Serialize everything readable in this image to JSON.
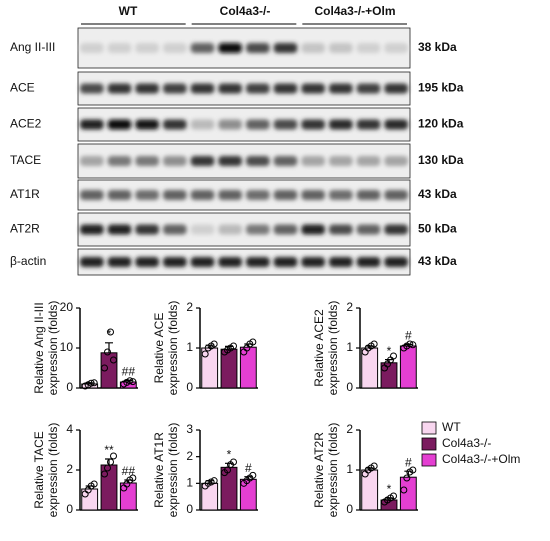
{
  "blot": {
    "groups": [
      "WT",
      "Col4a3-/-",
      "Col4a3-/-+Olm"
    ],
    "rows": [
      {
        "label": "Ang II-III",
        "size": "38 kDa"
      },
      {
        "label": "ACE",
        "size": "195 kDa"
      },
      {
        "label": "ACE2",
        "size": "120 kDa"
      },
      {
        "label": "TACE",
        "size": "130 kDa"
      },
      {
        "label": "AT1R",
        "size": "43 kDa"
      },
      {
        "label": "AT2R",
        "size": "50 kDa"
      },
      {
        "label": "β-actin",
        "size": "43 kDa"
      }
    ]
  },
  "legend": {
    "labels": [
      "WT",
      "Col4a3-/-",
      "Col4a3-/-+Olm"
    ],
    "colors": [
      "#f8d6ef",
      "#7b1b5f",
      "#e43fd2"
    ]
  },
  "chart_data": [
    {
      "type": "bar",
      "ylabel": [
        "Relative Ang II-III",
        "expression (folds)"
      ],
      "ylim": [
        0,
        20
      ],
      "yticks": [
        0,
        10,
        20
      ],
      "values": [
        1,
        8.8,
        1.5
      ],
      "errors": [
        0.3,
        2.5,
        0.4
      ],
      "points": [
        [
          0.5,
          0.8,
          1.2,
          1.3
        ],
        [
          5,
          9,
          14,
          7
        ],
        [
          1.0,
          1.4,
          1.8,
          1.6
        ]
      ],
      "annotations": [
        null,
        "*",
        "##"
      ],
      "colors": [
        "#f8d6ef",
        "#7b1b5f",
        "#e43fd2"
      ]
    },
    {
      "type": "bar",
      "ylabel": [
        "Relative ACE",
        "expression (folds)"
      ],
      "ylim": [
        0,
        2
      ],
      "yticks": [
        0,
        1,
        2
      ],
      "values": [
        1.0,
        0.97,
        1.02
      ],
      "errors": [
        0.07,
        0.07,
        0.08
      ],
      "points": [
        [
          0.85,
          1.0,
          1.05,
          1.1
        ],
        [
          0.9,
          0.95,
          1.0,
          1.05
        ],
        [
          0.9,
          1.0,
          1.1,
          1.15
        ]
      ],
      "annotations": [
        null,
        null,
        null
      ],
      "colors": [
        "#f8d6ef",
        "#7b1b5f",
        "#e43fd2"
      ]
    },
    {
      "type": "bar",
      "ylabel": [
        "Relative ACE2",
        "expression (folds)"
      ],
      "ylim": [
        0,
        2
      ],
      "yticks": [
        0,
        1,
        2
      ],
      "values": [
        1.0,
        0.63,
        1.05
      ],
      "errors": [
        0.05,
        0.08,
        0.04
      ],
      "points": [
        [
          0.9,
          1.0,
          1.05,
          1.1
        ],
        [
          0.5,
          0.6,
          0.7,
          0.8
        ],
        [
          1.0,
          1.05,
          1.1,
          1.08
        ]
      ],
      "annotations": [
        null,
        "*",
        "#"
      ],
      "colors": [
        "#f8d6ef",
        "#7b1b5f",
        "#e43fd2"
      ]
    },
    {
      "type": "bar",
      "ylabel": [
        "Relative TACE",
        "expression (folds)"
      ],
      "ylim": [
        0,
        4
      ],
      "yticks": [
        0,
        2,
        4
      ],
      "values": [
        1.05,
        2.25,
        1.35
      ],
      "errors": [
        0.15,
        0.3,
        0.15
      ],
      "points": [
        [
          0.8,
          1.0,
          1.2,
          1.3
        ],
        [
          1.8,
          2.1,
          2.4,
          2.7
        ],
        [
          1.1,
          1.3,
          1.5,
          1.6
        ]
      ],
      "annotations": [
        null,
        "**",
        "##"
      ],
      "colors": [
        "#f8d6ef",
        "#7b1b5f",
        "#e43fd2"
      ]
    },
    {
      "type": "bar",
      "ylabel": [
        "Relative AT1R",
        "expression (folds)"
      ],
      "ylim": [
        0,
        3
      ],
      "yticks": [
        0,
        1,
        2,
        3
      ],
      "values": [
        1.0,
        1.6,
        1.15
      ],
      "errors": [
        0.1,
        0.15,
        0.1
      ],
      "points": [
        [
          0.9,
          1.0,
          1.05,
          1.1
        ],
        [
          1.4,
          1.5,
          1.7,
          1.8
        ],
        [
          1.0,
          1.1,
          1.2,
          1.3
        ]
      ],
      "annotations": [
        null,
        "*",
        "#"
      ],
      "colors": [
        "#f8d6ef",
        "#7b1b5f",
        "#e43fd2"
      ]
    },
    {
      "type": "bar",
      "ylabel": [
        "Relative AT2R",
        "expression (folds)"
      ],
      "ylim": [
        0,
        2
      ],
      "yticks": [
        0,
        1,
        2
      ],
      "values": [
        1.0,
        0.25,
        0.82
      ],
      "errors": [
        0.05,
        0.05,
        0.15
      ],
      "points": [
        [
          0.9,
          1.0,
          1.05,
          1.1
        ],
        [
          0.2,
          0.25,
          0.3,
          0.35
        ],
        [
          0.5,
          0.8,
          0.95,
          1.0
        ]
      ],
      "annotations": [
        null,
        "*",
        "#"
      ],
      "colors": [
        "#f8d6ef",
        "#7b1b5f",
        "#e43fd2"
      ]
    }
  ]
}
